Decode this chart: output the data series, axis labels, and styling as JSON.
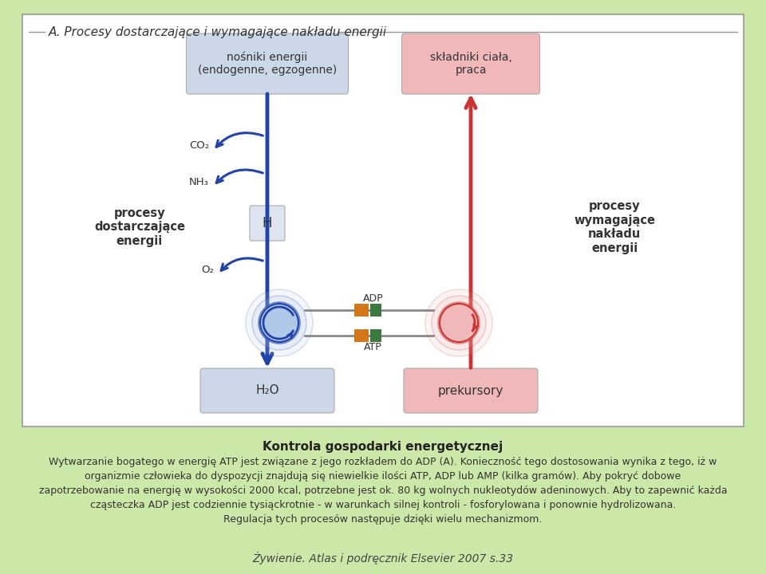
{
  "background_color": "#cce8a8",
  "panel_bg": "#ffffff",
  "panel_border_color": "#999999",
  "panel_title": "A. Procesy dostarczające i wymagające nakładu energii",
  "box_nosniki_text": "nośniki energii\n(endogenne, egzogenne)",
  "box_nosniki_color": "#ccd8e8",
  "box_skladniki_text": "składniki ciała,\npraca",
  "box_skladniki_color": "#f0b8b8",
  "box_h2o_text": "H₂O",
  "box_h2o_color": "#ccd8e8",
  "box_prekursory_text": "prekursory",
  "box_prekursory_color": "#f0b8b8",
  "left_label": "procesy\ndostarczające\nenergii",
  "right_label": "procesy\nwymagające\nnakładu\nenergii",
  "co2_text": "CO₂",
  "nh3_text": "NH₃",
  "h_text": "H",
  "o2_text": "O₂",
  "adp_text": "ADP",
  "atp_text": "ATP",
  "blue_arrow_color": "#2244aa",
  "red_arrow_color": "#cc3333",
  "title_bold": "Kontrola gospodarki energetycznej",
  "body_text": "Wytwarzanie bogatego w energię ATP jest związane z jego rozkładem do ADP (A). Konieczność tego dostosowania wynika z tego, iż w\norganizmie człowieka do dyspozycji znajdują się niewielkie ilości ATP, ADP lub AMP (kilka gramów). Aby pokryć dobowe\nzapotrzebowanie na energię w wysokości 2000 kcal, potrzebne jest ok. 80 kg wolnych nukleotydów adeninowych. Aby to zapewnić każda\ncząsteczka ADP jest codziennie tysiąckrotnie - w warunkach silnej kontroli - fosforylowana i ponownie hydrolizowana.\nRegulacja tych procesów następuje dzięki wielu mechanizmom.",
  "footer": "Żywienie. Atlas i podręcznik Elsevier 2007 s.33",
  "orange_color": "#d4761a",
  "green_color": "#3a7a40",
  "h_box_color": "#dde4f0",
  "circle_blue_face": "#b0c8e8",
  "circle_red_face": "#f0b8b8"
}
